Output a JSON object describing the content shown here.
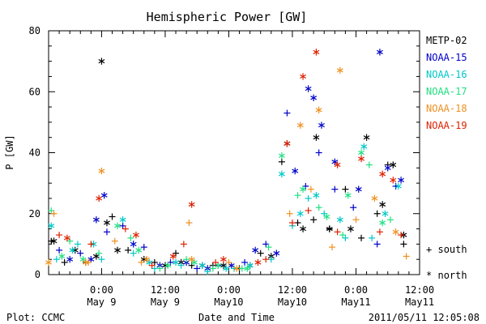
{
  "plot_title": "Hemispheric Power [GW]",
  "footer": {
    "left": "Plot: CCMC",
    "center": "Date and Time",
    "right": "2011/05/11 12:05:08"
  },
  "marker_legend": [
    {
      "symbol": "+",
      "label": "south"
    },
    {
      "symbol": "*",
      "label": "north"
    }
  ],
  "chart_data": {
    "type": "scatter",
    "title": "Hemispheric Power [GW]",
    "xlabel": "Date and Time",
    "ylabel": "P [GW]",
    "ylim": [
      0,
      80
    ],
    "xlim": [
      "2011-05-08T14:00",
      "2011-05-11T12:00"
    ],
    "y_ticks": [
      "0",
      "20",
      "40",
      "60",
      "80"
    ],
    "x_ticks": [
      {
        "time": "2011-05-09T00:00",
        "line1": "0:00",
        "line2": "May 9"
      },
      {
        "time": "2011-05-09T12:00",
        "line1": "12:00",
        "line2": "May 9"
      },
      {
        "time": "2011-05-10T00:00",
        "line1": "0:00",
        "line2": "May10"
      },
      {
        "time": "2011-05-10T12:00",
        "line1": "12:00",
        "line2": "May10"
      },
      {
        "time": "2011-05-11T00:00",
        "line1": "0:00",
        "line2": "May11"
      },
      {
        "time": "2011-05-11T12:00",
        "line1": "12:00",
        "line2": "May11"
      }
    ],
    "series": [
      {
        "name": "METP-02",
        "color": "#000000",
        "south": [
          [
            "2011-05-08T14:30",
            11
          ],
          [
            "2011-05-08T17:00",
            4
          ],
          [
            "2011-05-08T21:00",
            4
          ],
          [
            "2011-05-09T02:00",
            19
          ],
          [
            "2011-05-09T05:00",
            8
          ],
          [
            "2011-05-09T10:00",
            4
          ],
          [
            "2011-05-09T14:00",
            7
          ],
          [
            "2011-05-09T17:00",
            3
          ],
          [
            "2011-05-09T21:00",
            3
          ],
          [
            "2011-05-10T02:00",
            2
          ],
          [
            "2011-05-10T06:00",
            7
          ],
          [
            "2011-05-10T10:00",
            37
          ],
          [
            "2011-05-10T13:00",
            17
          ],
          [
            "2011-05-10T16:00",
            18
          ],
          [
            "2011-05-10T19:00",
            15
          ],
          [
            "2011-05-10T22:00",
            28
          ],
          [
            "2011-05-11T01:00",
            12
          ],
          [
            "2011-05-11T04:00",
            20
          ],
          [
            "2011-05-11T06:00",
            36
          ],
          [
            "2011-05-11T09:00",
            10
          ]
        ],
        "north": [
          [
            "2011-05-08T15:00",
            11
          ],
          [
            "2011-05-08T19:00",
            8
          ],
          [
            "2011-05-08T23:00",
            6
          ],
          [
            "2011-05-09T00:00",
            70
          ],
          [
            "2011-05-09T01:00",
            17
          ],
          [
            "2011-05-09T03:00",
            8
          ],
          [
            "2011-05-09T08:00",
            5
          ],
          [
            "2011-05-09T12:00",
            3
          ],
          [
            "2011-05-09T15:00",
            4
          ],
          [
            "2011-05-09T19:00",
            3
          ],
          [
            "2011-05-09T23:00",
            3
          ],
          [
            "2011-05-10T04:00",
            3
          ],
          [
            "2011-05-10T08:00",
            6
          ],
          [
            "2011-05-10T11:00",
            43
          ],
          [
            "2011-05-10T14:00",
            15
          ],
          [
            "2011-05-10T16:30",
            45
          ],
          [
            "2011-05-10T19:00",
            15
          ],
          [
            "2011-05-10T23:00",
            15
          ],
          [
            "2011-05-11T02:00",
            45
          ],
          [
            "2011-05-11T05:00",
            23
          ],
          [
            "2011-05-11T07:00",
            36
          ],
          [
            "2011-05-11T09:00",
            13
          ]
        ]
      },
      {
        "name": "NOAA-15",
        "color": "#0000c8",
        "south": [
          [
            "2011-05-08T16:00",
            8
          ],
          [
            "2011-05-08T20:00",
            7
          ],
          [
            "2011-05-09T01:00",
            14
          ],
          [
            "2011-05-09T04:00",
            16
          ],
          [
            "2011-05-09T08:00",
            9
          ],
          [
            "2011-05-09T13:00",
            4
          ],
          [
            "2011-05-09T18:00",
            2
          ],
          [
            "2011-05-09T22:00",
            3
          ],
          [
            "2011-05-10T03:00",
            4
          ],
          [
            "2011-05-10T07:00",
            10
          ],
          [
            "2011-05-10T11:00",
            53
          ],
          [
            "2011-05-10T14:30",
            29
          ],
          [
            "2011-05-10T17:00",
            40
          ],
          [
            "2011-05-10T20:00",
            28
          ],
          [
            "2011-05-10T23:30",
            22
          ],
          [
            "2011-05-11T04:00",
            10
          ],
          [
            "2011-05-11T07:30",
            29
          ]
        ],
        "north": [
          [
            "2011-05-08T18:00",
            5
          ],
          [
            "2011-05-08T22:00",
            5
          ],
          [
            "2011-05-08T23:00",
            18
          ],
          [
            "2011-05-09T00:30",
            26
          ],
          [
            "2011-05-09T06:00",
            10
          ],
          [
            "2011-05-09T11:00",
            3
          ],
          [
            "2011-05-09T16:00",
            4
          ],
          [
            "2011-05-09T20:00",
            2
          ],
          [
            "2011-05-10T00:30",
            3
          ],
          [
            "2011-05-10T05:00",
            8
          ],
          [
            "2011-05-10T09:00",
            7
          ],
          [
            "2011-05-10T12:30",
            34
          ],
          [
            "2011-05-10T15:00",
            61
          ],
          [
            "2011-05-10T16:00",
            58
          ],
          [
            "2011-05-10T17:30",
            49
          ],
          [
            "2011-05-10T20:00",
            37
          ],
          [
            "2011-05-11T00:30",
            28
          ],
          [
            "2011-05-11T04:30",
            73
          ],
          [
            "2011-05-11T06:00",
            35
          ],
          [
            "2011-05-11T08:30",
            31
          ]
        ]
      },
      {
        "name": "NOAA-16",
        "color": "#00c8c8",
        "south": [
          [
            "2011-05-08T15:30",
            5
          ],
          [
            "2011-05-08T19:30",
            10
          ],
          [
            "2011-05-09T00:00",
            5
          ],
          [
            "2011-05-09T06:00",
            7
          ],
          [
            "2011-05-09T10:00",
            2
          ],
          [
            "2011-05-09T15:00",
            3
          ],
          [
            "2011-05-09T20:00",
            1
          ],
          [
            "2011-05-10T01:00",
            2
          ],
          [
            "2011-05-10T08:00",
            5
          ],
          [
            "2011-05-10T12:00",
            16
          ],
          [
            "2011-05-10T15:00",
            25
          ],
          [
            "2011-05-10T18:00",
            20
          ],
          [
            "2011-05-10T22:00",
            12
          ],
          [
            "2011-05-11T03:00",
            12
          ]
        ],
        "north": [
          [
            "2011-05-08T14:30",
            16
          ],
          [
            "2011-05-08T18:30",
            8
          ],
          [
            "2011-05-08T22:30",
            10
          ],
          [
            "2011-05-09T04:00",
            18
          ],
          [
            "2011-05-09T09:00",
            4
          ],
          [
            "2011-05-09T14:00",
            4
          ],
          [
            "2011-05-09T19:00",
            3
          ],
          [
            "2011-05-09T23:30",
            2
          ],
          [
            "2011-05-10T04:00",
            3
          ],
          [
            "2011-05-10T10:00",
            33
          ],
          [
            "2011-05-10T13:30",
            20
          ],
          [
            "2011-05-10T16:30",
            26
          ],
          [
            "2011-05-10T21:00",
            18
          ],
          [
            "2011-05-11T01:30",
            42
          ],
          [
            "2011-05-11T05:30",
            20
          ],
          [
            "2011-05-11T08:00",
            29
          ]
        ]
      },
      {
        "name": "NOAA-17",
        "color": "#20e080",
        "south": [
          [
            "2011-05-08T14:30",
            21
          ],
          [
            "2011-05-08T18:00",
            11
          ],
          [
            "2011-05-08T23:30",
            7
          ],
          [
            "2011-05-09T05:30",
            12
          ],
          [
            "2011-05-09T11:00",
            2
          ],
          [
            "2011-05-09T16:00",
            5
          ],
          [
            "2011-05-09T21:00",
            2
          ],
          [
            "2011-05-10T02:30",
            2
          ],
          [
            "2011-05-10T07:30",
            9
          ],
          [
            "2011-05-10T13:00",
            26
          ],
          [
            "2011-05-10T17:00",
            22
          ],
          [
            "2011-05-10T21:30",
            13
          ],
          [
            "2011-05-11T02:30",
            36
          ],
          [
            "2011-05-11T06:30",
            18
          ]
        ],
        "north": [
          [
            "2011-05-08T16:30",
            6
          ],
          [
            "2011-05-08T20:30",
            5
          ],
          [
            "2011-05-09T03:00",
            16
          ],
          [
            "2011-05-09T07:00",
            8
          ],
          [
            "2011-05-09T12:30",
            3
          ],
          [
            "2011-05-09T17:30",
            4
          ],
          [
            "2011-05-09T22:00",
            3
          ],
          [
            "2011-05-10T03:30",
            2
          ],
          [
            "2011-05-10T10:00",
            39
          ],
          [
            "2011-05-10T14:00",
            28
          ],
          [
            "2011-05-10T18:30",
            19
          ],
          [
            "2011-05-10T22:30",
            26
          ],
          [
            "2011-05-11T01:00",
            40
          ],
          [
            "2011-05-11T05:00",
            17
          ]
        ]
      },
      {
        "name": "NOAA-18",
        "color": "#f09020",
        "south": [
          [
            "2011-05-08T15:00",
            20
          ],
          [
            "2011-05-08T21:30",
            4
          ],
          [
            "2011-05-09T02:30",
            11
          ],
          [
            "2011-05-09T07:30",
            4
          ],
          [
            "2011-05-09T16:30",
            17
          ],
          [
            "2011-05-10T00:00",
            4
          ],
          [
            "2011-05-10T11:30",
            20
          ],
          [
            "2011-05-10T15:30",
            28
          ],
          [
            "2011-05-10T19:30",
            9
          ],
          [
            "2011-05-11T00:00",
            18
          ],
          [
            "2011-05-11T09:30",
            6
          ]
        ],
        "north": [
          [
            "2011-05-08T14:00",
            4
          ],
          [
            "2011-05-08T21:00",
            4
          ],
          [
            "2011-05-09T00:00",
            34
          ],
          [
            "2011-05-09T08:30",
            5
          ],
          [
            "2011-05-09T17:00",
            5
          ],
          [
            "2011-05-10T01:30",
            2
          ],
          [
            "2011-05-10T13:30",
            49
          ],
          [
            "2011-05-10T17:00",
            54
          ],
          [
            "2011-05-10T21:00",
            67
          ],
          [
            "2011-05-11T03:30",
            25
          ],
          [
            "2011-05-11T07:30",
            14
          ]
        ]
      },
      {
        "name": "NOAA-19",
        "color": "#e02000",
        "south": [
          [
            "2011-05-08T16:00",
            13
          ],
          [
            "2011-05-08T22:00",
            10
          ],
          [
            "2011-05-09T04:30",
            15
          ],
          [
            "2011-05-09T09:30",
            3
          ],
          [
            "2011-05-09T15:30",
            10
          ],
          [
            "2011-05-09T21:30",
            4
          ],
          [
            "2011-05-10T07:00",
            5
          ],
          [
            "2011-05-10T12:00",
            17
          ],
          [
            "2011-05-10T15:00",
            21
          ],
          [
            "2011-05-10T20:30",
            14
          ],
          [
            "2011-05-11T04:30",
            14
          ],
          [
            "2011-05-11T08:30",
            13
          ]
        ],
        "north": [
          [
            "2011-05-08T17:30",
            12
          ],
          [
            "2011-05-08T23:30",
            25
          ],
          [
            "2011-05-09T06:30",
            13
          ],
          [
            "2011-05-09T13:30",
            6
          ],
          [
            "2011-05-09T17:00",
            23
          ],
          [
            "2011-05-09T23:00",
            5
          ],
          [
            "2011-05-10T05:30",
            4
          ],
          [
            "2011-05-10T11:00",
            43
          ],
          [
            "2011-05-10T14:00",
            65
          ],
          [
            "2011-05-10T16:30",
            73
          ],
          [
            "2011-05-10T20:30",
            36
          ],
          [
            "2011-05-11T01:00",
            38
          ],
          [
            "2011-05-11T05:00",
            33
          ],
          [
            "2011-05-11T07:00",
            31
          ]
        ]
      }
    ]
  }
}
